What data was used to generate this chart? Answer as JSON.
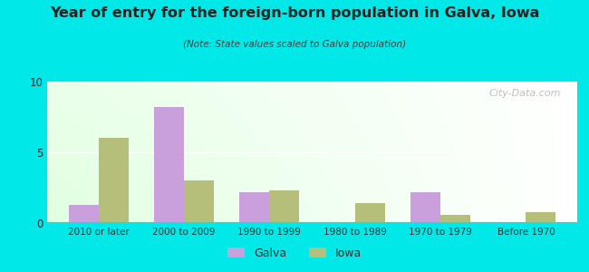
{
  "title": "Year of entry for the foreign-born population in Galva, Iowa",
  "subtitle": "(Note: State values scaled to Galva population)",
  "categories": [
    "2010 or later",
    "2000 to 2009",
    "1990 to 1999",
    "1980 to 1989",
    "1970 to 1979",
    "Before 1970"
  ],
  "galva_values": [
    1.3,
    8.2,
    2.2,
    0,
    2.2,
    0
  ],
  "iowa_values": [
    6.0,
    3.0,
    2.3,
    1.4,
    0.6,
    0.8
  ],
  "galva_color": "#c9a0dc",
  "iowa_color": "#b5bf7a",
  "background_outer": "#00e8e8",
  "ylim": [
    0,
    10
  ],
  "yticks": [
    0,
    5,
    10
  ],
  "bar_width": 0.35,
  "legend_galva": "Galva",
  "legend_iowa": "Iowa",
  "watermark": "City-Data.com",
  "title_color": "#222222",
  "subtitle_color": "#444444"
}
